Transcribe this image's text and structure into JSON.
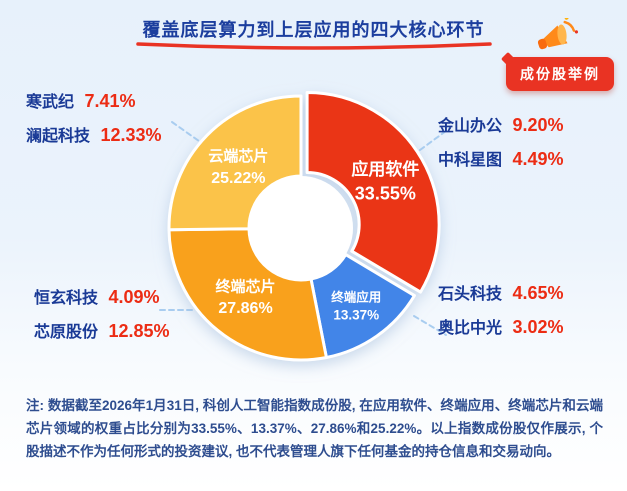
{
  "page": {
    "title": "覆盖底层算力到上层应用的四大核心环节",
    "badge": "成份股举例",
    "note": "注: 数据截至2026年1月31日, 科创人工智能指数成份股, 在应用软件、终端应用、终端芯片和云端芯片领域的权重占比分别为33.55%、13.37%、27.86%和25.22%。以上指数成份股仅作展示, 个股描述不作为任何形式的投资建议, 也不代表管理人旗下任何基金的持仓信息和交易动向。"
  },
  "chart_data": {
    "type": "pie",
    "title": "覆盖底层算力到上层应用的四大核心环节",
    "hole": true,
    "legend_position": "inside",
    "start_angle": -90,
    "center": [
      301,
      228
    ],
    "inner_radius": 52,
    "outer_radius": 132,
    "slices": [
      {
        "label": "应用软件",
        "value": 33.55,
        "display": "33.55%",
        "color": "#ea3418",
        "explode": 7,
        "label_size": 17,
        "label_radius": 90
      },
      {
        "label": "终端应用",
        "value": 13.37,
        "display": "13.37%",
        "color": "#4285e8",
        "explode": 0,
        "label_size": 12.5,
        "label_radius": 96
      },
      {
        "label": "终端芯片",
        "value": 27.86,
        "display": "27.86%",
        "color": "#f9a11b",
        "explode": 0,
        "label_size": 15,
        "label_radius": 88
      },
      {
        "label": "云端芯片",
        "value": 25.22,
        "display": "25.22%",
        "color": "#fbc34a",
        "explode": 0,
        "label_size": 15,
        "label_radius": 88
      }
    ]
  },
  "stocks": {
    "cloud_chip": [
      {
        "name": "寒武纪",
        "pct": "7.41%"
      },
      {
        "name": "澜起科技",
        "pct": "12.33%"
      }
    ],
    "terminal_chip": [
      {
        "name": "恒玄科技",
        "pct": "4.09%"
      },
      {
        "name": "芯原股份",
        "pct": "12.85%"
      }
    ],
    "app_software": [
      {
        "name": "金山办公",
        "pct": "9.20%"
      },
      {
        "name": "中科星图",
        "pct": "4.49%"
      }
    ],
    "terminal_app": [
      {
        "name": "石头科技",
        "pct": "4.65%"
      },
      {
        "name": "奥比中光",
        "pct": "3.02%"
      }
    ]
  },
  "colors": {
    "accent_red": "#e93323",
    "stat_red": "#ec2c14",
    "navy_name": "#1a3a96",
    "title_blue": "#1c3e9e",
    "note_blue": "#2e4d8f",
    "dashed_line": "#a9cdf0",
    "background_top": "#e7f1fb"
  }
}
